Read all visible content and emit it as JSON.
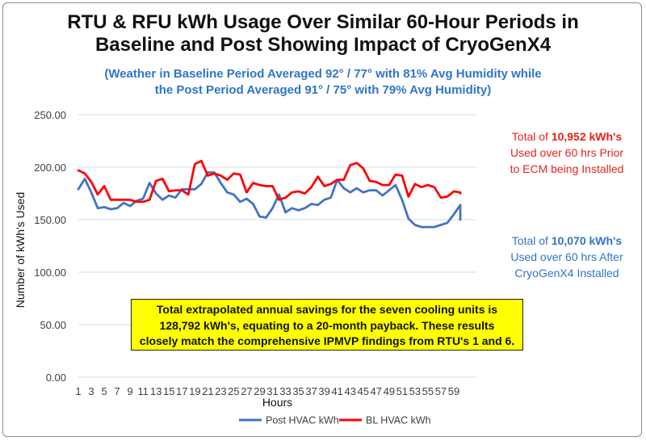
{
  "title_lines": [
    "RTU & RFU kWh Usage Over Similar 60-Hour Periods in",
    "Baseline and Post Showing Impact of CryoGenX4"
  ],
  "subtitle_lines": [
    "(Weather in Baseline Period Averaged 92° / 77° with 81% Avg Humidity while",
    "the Post Period Averaged 91° / 75° with 79% Avg Humidity)"
  ],
  "annotation_bl": {
    "prefix": "Total of ",
    "value": "10,952 kWh's",
    "line2": "Used over 60 hrs Prior",
    "line3": "to ECM being Installed"
  },
  "annotation_post": {
    "prefix": "Total of ",
    "value": "10,070 kWh's",
    "line2": "Used over 60 hrs After",
    "line3": "CryoGenX4 Installed"
  },
  "savings_box": [
    "Total extrapolated annual savings for the seven cooling units is",
    "128,792 kWh's, equating to a 20-month payback.  These results",
    "closely match the comprehensive IPMVP findings from RTU's 1 and 6."
  ],
  "colors": {
    "post": "#4472c4",
    "bl": "#ff0000",
    "grid": "#d9d9d9",
    "subtitle": "#2f75c9"
  },
  "chart_data": {
    "type": "line",
    "xlabel": "Hours",
    "ylabel": "Number of kWh's Used",
    "ylim": [
      0,
      250
    ],
    "y_ticks": [
      "0.00",
      "50.00",
      "100.00",
      "150.00",
      "200.00",
      "250.00"
    ],
    "x_ticks": [
      "1",
      "3",
      "5",
      "7",
      "9",
      "11",
      "13",
      "15",
      "17",
      "19",
      "21",
      "23",
      "25",
      "27",
      "29",
      "31",
      "33",
      "35",
      "37",
      "39",
      "41",
      "43",
      "45",
      "47",
      "49",
      "51",
      "53",
      "55",
      "57",
      "59"
    ],
    "x": [
      1,
      2,
      3,
      4,
      5,
      6,
      7,
      8,
      9,
      10,
      11,
      12,
      13,
      14,
      15,
      16,
      17,
      18,
      19,
      20,
      21,
      22,
      23,
      24,
      25,
      26,
      27,
      28,
      29,
      30,
      31,
      32,
      33,
      34,
      35,
      36,
      37,
      38,
      39,
      40,
      41,
      42,
      43,
      44,
      45,
      46,
      47,
      48,
      49,
      50,
      51,
      52,
      53,
      54,
      55,
      56,
      57,
      58,
      59,
      60
    ],
    "grid": true,
    "legend": "bottom",
    "series": [
      {
        "name": "Post HVAC kWh",
        "values": [
          179,
          189,
          176,
          161,
          162,
          160,
          161,
          166,
          163,
          168,
          170,
          185,
          175,
          169,
          173,
          171,
          179,
          179,
          179,
          184,
          195,
          195,
          185,
          176,
          174,
          167,
          170,
          165,
          153,
          152,
          161,
          174,
          157,
          161,
          159,
          161,
          165,
          164,
          169,
          171,
          188,
          180,
          176,
          180,
          176,
          178,
          178,
          173,
          178,
          183,
          169,
          151,
          145,
          143,
          143,
          143,
          145,
          147,
          155,
          164
        ],
        "_tail": [
          150
        ]
      },
      {
        "name": "BL HVAC kWh",
        "values": [
          197,
          194,
          186,
          174,
          182,
          169,
          169,
          169,
          169,
          167,
          167,
          169,
          187,
          189,
          177,
          178,
          178,
          174,
          203,
          206,
          192,
          194,
          192,
          188,
          194,
          193,
          176,
          185,
          183,
          182,
          182,
          169,
          171,
          176,
          177,
          175,
          181,
          191,
          182,
          184,
          188,
          188,
          202,
          204,
          199,
          187,
          186,
          183,
          183,
          193,
          192,
          172,
          184,
          181,
          183,
          181,
          171,
          172,
          177,
          176
        ],
        "_tail": [
          175
        ]
      }
    ]
  }
}
